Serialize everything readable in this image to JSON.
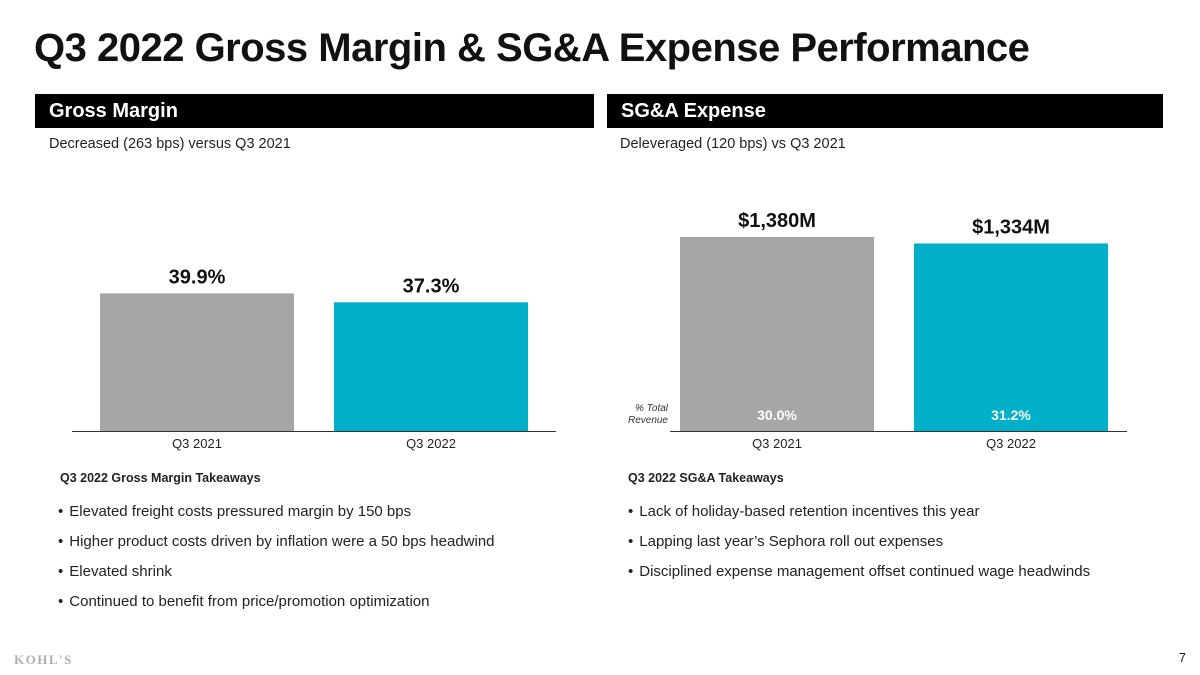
{
  "title": "Q3 2022 Gross Margin & SG&A Expense Performance",
  "colors": {
    "prior": "#a6a6a6",
    "current": "#00b0c8",
    "bar_header": "#000000"
  },
  "left": {
    "header": "Gross Margin",
    "subtitle": "Decreased (263 bps) versus Q3 2021",
    "takeaways_title": "Q3 2022 Gross Margin Takeaways",
    "bullets": [
      "Elevated freight costs pressured margin by 150 bps",
      "Higher product costs driven by inflation were a 50 bps headwind",
      "Elevated shrink",
      "Continued to benefit from price/promotion optimization"
    ]
  },
  "right": {
    "header": "SG&A Expense",
    "subtitle": "Deleveraged (120 bps) vs Q3 2021",
    "takeaways_title": "Q3 2022 SG&A Takeaways",
    "bullets": [
      "Lack of holiday-based retention incentives this year",
      "Lapping last year’s Sephora roll out expenses",
      "Disciplined expense management offset continued wage headwinds"
    ]
  },
  "chart_data": [
    {
      "type": "bar",
      "categories": [
        "Q3 2021",
        "Q3 2022"
      ],
      "values": [
        39.9,
        37.3
      ],
      "value_labels": [
        "39.9%",
        "37.3%"
      ],
      "ylim": [
        0,
        40
      ]
    },
    {
      "type": "bar",
      "categories": [
        "Q3 2021",
        "Q3 2022"
      ],
      "values": [
        1380,
        1334
      ],
      "value_labels": [
        "$1,380M",
        "$1,334M"
      ],
      "pct_label": "% Total Revenue",
      "pct_label_lines": [
        "% Total",
        "Revenue"
      ],
      "pct_values": [
        "30.0%",
        "31.2%"
      ],
      "ylim": [
        0,
        1380
      ]
    }
  ],
  "footer": {
    "logo": "KOHL'S",
    "page": "7"
  }
}
